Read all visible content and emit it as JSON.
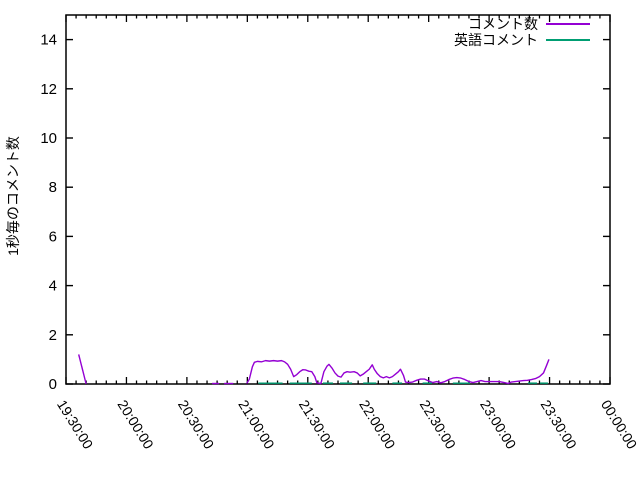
{
  "chart_data": {
    "type": "line",
    "title": "",
    "xlabel": "",
    "ylabel": "1秒毎のコメント数",
    "ylim": [
      0,
      15
    ],
    "ytick_labels": [
      "0",
      "2",
      "4",
      "6",
      "8",
      "10",
      "12",
      "14"
    ],
    "ytick_values": [
      0,
      2,
      4,
      6,
      8,
      10,
      12,
      14
    ],
    "x_axis": {
      "unit": "time",
      "range_minutes": [
        0,
        270
      ],
      "major_tick_minutes": [
        0,
        30,
        60,
        90,
        120,
        150,
        180,
        210,
        240,
        270
      ],
      "minor_tick_step_minutes": 5,
      "tick_labels": [
        "19:30:00",
        "20:00:00",
        "20:30:00",
        "21:00:00",
        "21:30:00",
        "22:00:00",
        "22:30:00",
        "23:00:00",
        "23:30:00",
        "00:00:00"
      ]
    },
    "grid": false,
    "legend_position": "top-right-inside",
    "legend": [
      {
        "label": "コメント数",
        "color": "#9400d3"
      },
      {
        "label": "英語コメント",
        "color": "#009e73"
      }
    ],
    "series": [
      {
        "name": "コメント数",
        "color": "#9400d3",
        "segments": [
          [
            [
              6.3,
              1.2
            ],
            [
              10,
              0
            ]
          ],
          [
            [
              72.5,
              0.02
            ],
            [
              76,
              0.02
            ]
          ],
          [
            [
              78.5,
              0.02
            ],
            [
              83,
              0.02
            ]
          ],
          [
            [
              89.7,
              0.02
            ],
            [
              91,
              0.2
            ],
            [
              92.5,
              0.7
            ],
            [
              93.5,
              0.88
            ],
            [
              95,
              0.92
            ],
            [
              97,
              0.9
            ],
            [
              99,
              0.95
            ],
            [
              101,
              0.93
            ],
            [
              103,
              0.95
            ],
            [
              105,
              0.93
            ],
            [
              107,
              0.95
            ],
            [
              108.5,
              0.9
            ],
            [
              110,
              0.8
            ],
            [
              111.5,
              0.6
            ],
            [
              113,
              0.3
            ],
            [
              114.5,
              0.38
            ],
            [
              116,
              0.5
            ],
            [
              117.5,
              0.58
            ],
            [
              119,
              0.57
            ],
            [
              120.5,
              0.52
            ],
            [
              122,
              0.5
            ],
            [
              123.5,
              0.3
            ],
            [
              124.5,
              0.05
            ],
            [
              126.5,
              0.02
            ],
            [
              128,
              0.5
            ],
            [
              129.5,
              0.72
            ],
            [
              130.5,
              0.8
            ],
            [
              132,
              0.65
            ],
            [
              133.5,
              0.45
            ],
            [
              135,
              0.32
            ],
            [
              136.5,
              0.28
            ],
            [
              138,
              0.45
            ],
            [
              139.5,
              0.5
            ],
            [
              141,
              0.48
            ],
            [
              143,
              0.5
            ],
            [
              144.5,
              0.45
            ],
            [
              146,
              0.33
            ],
            [
              147.5,
              0.4
            ],
            [
              149,
              0.5
            ],
            [
              150.5,
              0.6
            ],
            [
              152,
              0.78
            ],
            [
              153,
              0.6
            ],
            [
              154.5,
              0.42
            ],
            [
              156,
              0.3
            ],
            [
              157.5,
              0.25
            ],
            [
              159,
              0.3
            ],
            [
              160.5,
              0.25
            ],
            [
              162,
              0.3
            ],
            [
              163.5,
              0.4
            ],
            [
              165,
              0.5
            ],
            [
              166,
              0.6
            ],
            [
              167.5,
              0.35
            ],
            [
              168.5,
              0.08
            ],
            [
              170,
              0.06
            ],
            [
              172,
              0.08
            ],
            [
              174,
              0.15
            ],
            [
              176,
              0.2
            ],
            [
              178,
              0.2
            ],
            [
              180,
              0.12
            ],
            [
              182,
              0.06
            ],
            [
              184,
              0.1
            ],
            [
              186,
              0.05
            ],
            [
              188,
              0.1
            ],
            [
              190,
              0.18
            ],
            [
              192,
              0.24
            ],
            [
              194,
              0.26
            ],
            [
              196,
              0.24
            ],
            [
              198,
              0.18
            ],
            [
              200,
              0.1
            ],
            [
              202,
              0.06
            ],
            [
              204,
              0.1
            ],
            [
              206,
              0.14
            ],
            [
              208,
              0.1
            ],
            [
              210,
              0.1
            ],
            [
              212.5,
              0.1
            ],
            [
              215,
              0.1
            ],
            [
              217.5,
              0.06
            ],
            [
              219.5,
              0.02
            ],
            [
              221,
              0.08
            ],
            [
              223,
              0.1
            ],
            [
              225,
              0.12
            ],
            [
              227,
              0.14
            ],
            [
              229,
              0.15
            ],
            [
              231,
              0.18
            ],
            [
              233,
              0.22
            ],
            [
              235,
              0.3
            ],
            [
              237,
              0.45
            ],
            [
              238.5,
              0.75
            ],
            [
              239.7,
              1.0
            ]
          ]
        ]
      },
      {
        "name": "英語コメント",
        "color": "#009e73",
        "segments": [
          [
            [
              95.5,
              0.035
            ],
            [
              107.5,
              0.035
            ]
          ],
          [
            [
              111,
              0.035
            ],
            [
              122,
              0.035
            ]
          ],
          [
            [
              127.5,
              0.035
            ],
            [
              132.5,
              0.035
            ]
          ],
          [
            [
              136,
              0.035
            ],
            [
              142,
              0.035
            ]
          ],
          [
            [
              147.5,
              0.035
            ],
            [
              154,
              0.035
            ]
          ],
          [
            [
              162,
              0.035
            ],
            [
              166.8,
              0.035
            ]
          ],
          [
            [
              177,
              0.035
            ],
            [
              181.6,
              0.035
            ]
          ],
          [
            [
              192,
              0.035
            ],
            [
              200.5,
              0.035
            ]
          ],
          [
            [
              229.3,
              0.035
            ],
            [
              233.8,
              0.035
            ]
          ],
          [
            [
              235.2,
              0.035
            ],
            [
              239.2,
              0.035
            ]
          ]
        ]
      }
    ]
  },
  "colors": {
    "axis": "#000000",
    "background": "#ffffff",
    "text": "#000000"
  }
}
